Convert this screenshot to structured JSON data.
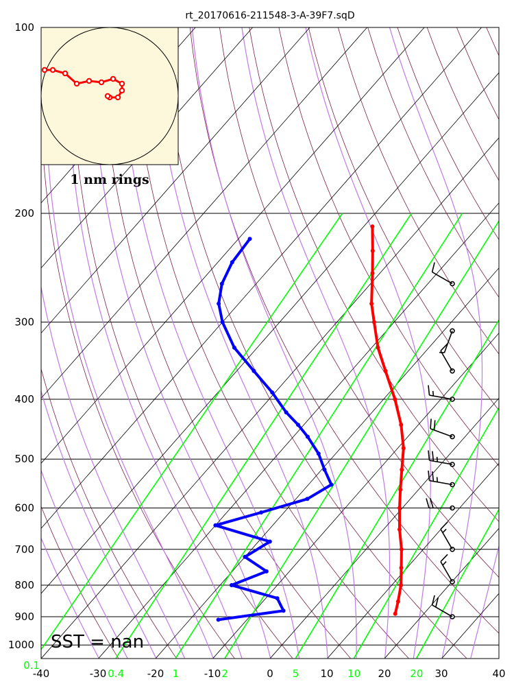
{
  "chart_data": {
    "type": "skew-t",
    "title": "rt_20170616-211548-3-A-39F7.sqD",
    "x_axis": {
      "ticks": [
        -40,
        -30,
        -20,
        -10,
        0,
        10,
        20,
        30,
        40
      ],
      "xlim": [
        -40,
        40
      ]
    },
    "y_axis": {
      "ticks": [
        100,
        200,
        300,
        400,
        500,
        600,
        700,
        800,
        900,
        1000
      ],
      "ylim": [
        1050,
        100
      ],
      "scale": "log"
    },
    "mixing_ratio_labels": [
      "0.1",
      "0.4",
      "1",
      "2",
      "5",
      "10",
      "20"
    ],
    "sst_label": "SST =  nan",
    "hodograph_label": "1 nm rings",
    "temperature": {
      "name": "Temperature",
      "color": "#ff0000",
      "pressure": [
        210,
        230,
        250,
        280,
        300,
        330,
        360,
        400,
        440,
        480,
        520,
        560,
        600,
        650,
        700,
        750,
        800,
        850,
        890
      ],
      "values": [
        -48.5,
        -44.7,
        -41.3,
        -36.8,
        -33.5,
        -28.9,
        -24.0,
        -18.0,
        -13.0,
        -9.0,
        -6.0,
        -3.2,
        -0.5,
        2.8,
        6.2,
        9.0,
        11.6,
        13.6,
        15.0
      ]
    },
    "dewpoint": {
      "name": "Dewpoint",
      "color": "#0000ff",
      "pressure": [
        220,
        240,
        260,
        280,
        300,
        330,
        360,
        390,
        420,
        440,
        460,
        490,
        520,
        550,
        580,
        610,
        640,
        680,
        720,
        760,
        800,
        840,
        880,
        910
      ],
      "values": [
        -68.0,
        -67.5,
        -66.0,
        -63.5,
        -60.0,
        -54.0,
        -47.0,
        -40.5,
        -35.0,
        -31.0,
        -27.5,
        -23.0,
        -19.5,
        -16.0,
        -18.0,
        -24.0,
        -30.0,
        -18.0,
        -20.0,
        -14.0,
        -18.0,
        -8.0,
        -5.0,
        -15.0
      ]
    },
    "wind_barbs": [
      {
        "pressure": 260,
        "direction": 300,
        "speed_kt": 10
      },
      {
        "pressure": 310,
        "direction": 200,
        "speed_kt": 5
      },
      {
        "pressure": 360,
        "direction": 330,
        "speed_kt": 10
      },
      {
        "pressure": 400,
        "direction": 280,
        "speed_kt": 15
      },
      {
        "pressure": 460,
        "direction": 290,
        "speed_kt": 20
      },
      {
        "pressure": 510,
        "direction": 280,
        "speed_kt": 25
      },
      {
        "pressure": 550,
        "direction": 280,
        "speed_kt": 25
      },
      {
        "pressure": 600,
        "direction": 270,
        "speed_kt": 20
      },
      {
        "pressure": 700,
        "direction": 330,
        "speed_kt": 15
      },
      {
        "pressure": 790,
        "direction": 330,
        "speed_kt": 15
      },
      {
        "pressure": 900,
        "direction": 300,
        "speed_kt": 20
      }
    ],
    "hodograph_track": {
      "u": [
        -0.95,
        -0.83,
        -0.65,
        -0.48,
        -0.3,
        -0.12,
        0.05,
        0.18,
        0.18,
        0.12,
        0.0,
        -0.03
      ],
      "v": [
        0.38,
        0.38,
        0.33,
        0.18,
        0.22,
        0.2,
        0.25,
        0.18,
        0.08,
        -0.02,
        -0.02,
        0.0
      ]
    },
    "colors": {
      "isotherms": "#000000",
      "dry_adiabats": "#7a1e48",
      "moist_adiabats": "#c178e8",
      "mixing_ratio": "#00ff00",
      "hodograph_bg": "#fdf8dc"
    }
  }
}
